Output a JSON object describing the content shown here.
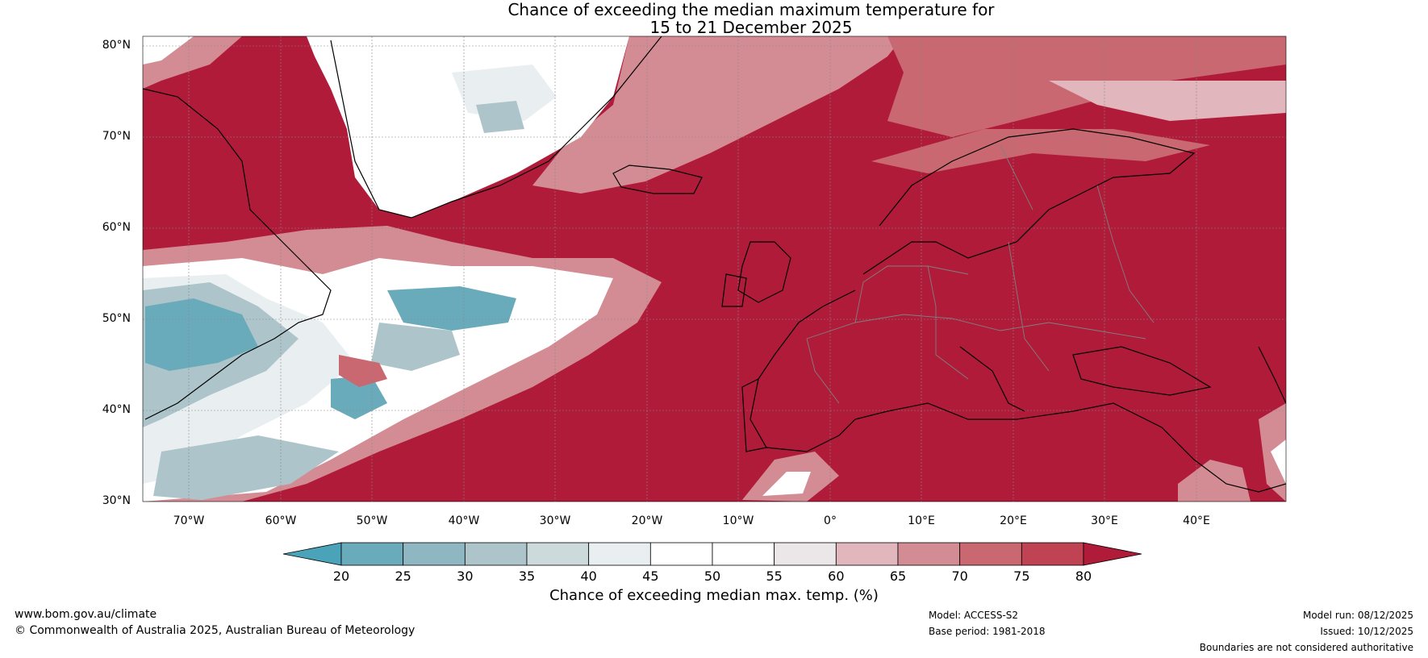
{
  "title": {
    "line1": "Chance of exceeding the median maximum temperature for",
    "line2": "15 to 21 December 2025"
  },
  "latitude_labels": [
    "80°N",
    "70°N",
    "60°N",
    "50°N",
    "40°N",
    "30°N"
  ],
  "longitude_labels": [
    "70°W",
    "60°W",
    "50°W",
    "40°W",
    "30°W",
    "20°W",
    "10°W",
    "0°",
    "10°E",
    "20°E",
    "30°E",
    "40°E"
  ],
  "colorbar": {
    "ticks": [
      "20",
      "25",
      "30",
      "35",
      "40",
      "45",
      "50",
      "55",
      "60",
      "65",
      "70",
      "75",
      "80"
    ],
    "label": "Chance of exceeding median max. temp. (%)",
    "colors": [
      "#4aa3b8",
      "#6aabbb",
      "#8fb7c2",
      "#adc5ca",
      "#ccdadc",
      "#e9eff1",
      "#ffffff",
      "#ffffff",
      "#ebe6e7",
      "#e1b6bc",
      "#d48c94",
      "#c96871",
      "#bf4353",
      "#b01b3a"
    ]
  },
  "footer": {
    "website": "www.bom.gov.au/climate",
    "copyright": "© Commonwealth of Australia 2025, Australian Bureau of Meteorology",
    "model": "Model: ACCESS-S2",
    "base_period": "Base period: 1981-2018",
    "model_run": "Model run: 08/12/2025",
    "issued": "Issued: 10/12/2025",
    "disclaimer": "Boundaries are not considered authoritative"
  },
  "map_colors": {
    "warm": "#b01b3a",
    "warm2": "#c96871",
    "warm3": "#d48c94",
    "warm4": "#e1b6bc",
    "neutral": "#ffffff",
    "cool1": "#e9eff1",
    "cool2": "#adc5ca",
    "cool3": "#6aabbb",
    "cool4": "#4aa3b8",
    "coast": "#000000",
    "border": "#808080"
  }
}
